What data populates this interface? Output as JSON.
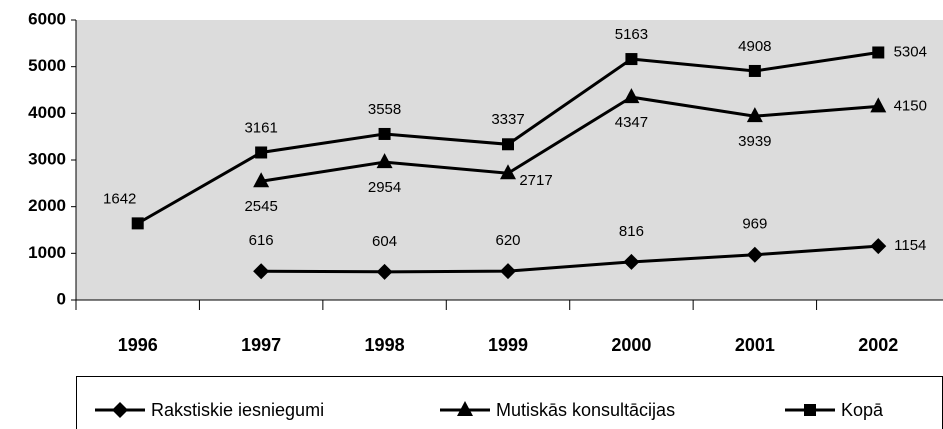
{
  "chart_data": {
    "type": "line",
    "categories": [
      "1996",
      "1997",
      "1998",
      "1999",
      "2000",
      "2001",
      "2002"
    ],
    "series": [
      {
        "name": "Rakstiskie iesniegumi",
        "color": "#000000",
        "marker": "diamond",
        "values": [
          null,
          616,
          604,
          620,
          816,
          969,
          1154
        ]
      },
      {
        "name": "Mutiskās konsultācijas",
        "color": "#000000",
        "marker": "triangle",
        "values": [
          null,
          2545,
          2954,
          2717,
          4347,
          3939,
          4150
        ]
      },
      {
        "name": "Kopā",
        "color": "#000000",
        "marker": "square",
        "values": [
          1642,
          3161,
          3558,
          3337,
          5163,
          4908,
          5304
        ]
      }
    ],
    "ylim": [
      0,
      6000
    ],
    "yticks": [
      0,
      1000,
      2000,
      3000,
      4000,
      5000,
      6000
    ],
    "legend": "bottom"
  }
}
